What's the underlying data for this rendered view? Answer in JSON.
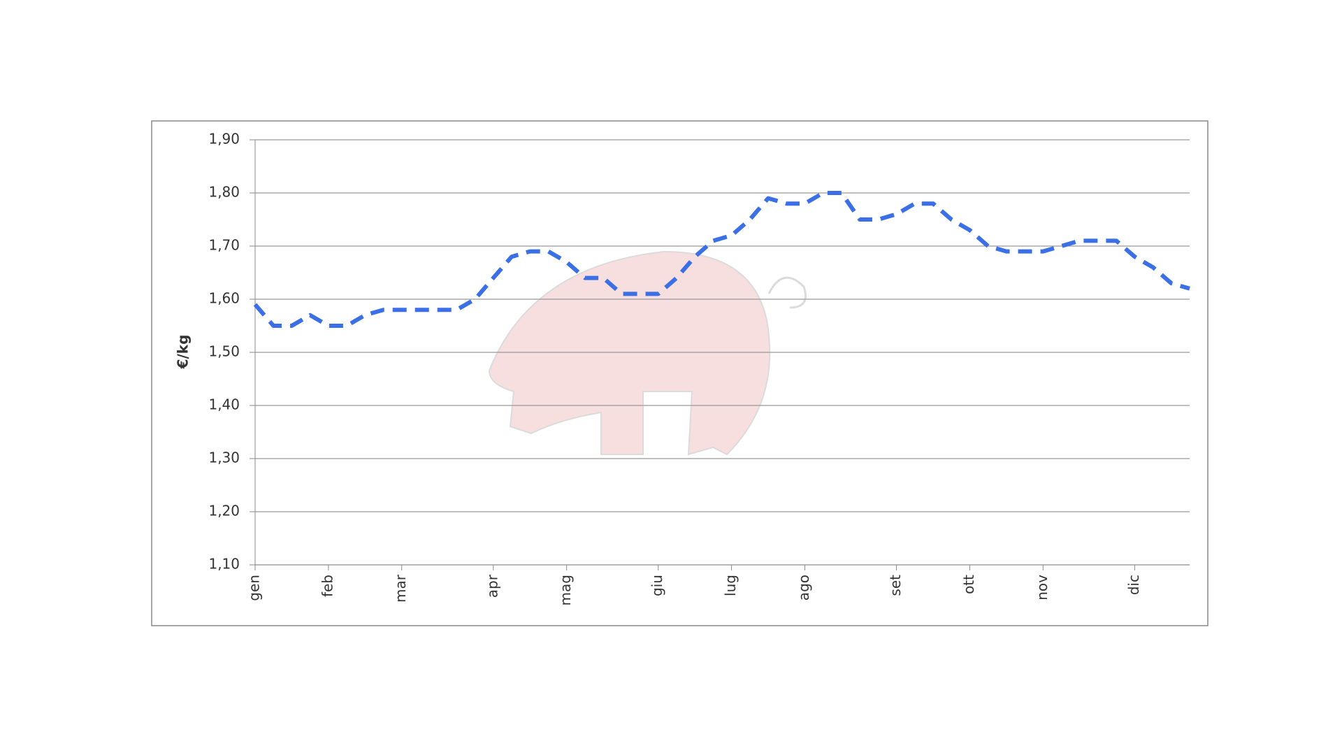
{
  "chart_data": {
    "type": "line",
    "ylabel": "€/kg",
    "categories": [
      "gen",
      null,
      null,
      null,
      "feb",
      null,
      null,
      null,
      "mar",
      null,
      null,
      null,
      null,
      "apr",
      null,
      null,
      null,
      "mag",
      null,
      null,
      null,
      null,
      "giu",
      null,
      null,
      null,
      "lug",
      null,
      null,
      null,
      "ago",
      null,
      null,
      null,
      null,
      "set",
      null,
      null,
      null,
      "ott",
      null,
      null,
      null,
      "nov",
      null,
      null,
      null,
      null,
      "dic",
      null,
      null,
      null
    ],
    "series": [
      {
        "color": "#3a6fe6",
        "values": [
          1.59,
          1.55,
          1.55,
          1.57,
          1.55,
          1.55,
          1.57,
          1.58,
          1.58,
          1.58,
          1.58,
          1.58,
          1.6,
          1.64,
          1.68,
          1.69,
          1.69,
          1.67,
          1.64,
          1.64,
          1.61,
          1.61,
          1.61,
          1.64,
          1.68,
          1.71,
          1.72,
          1.75,
          1.79,
          1.78,
          1.78,
          1.8,
          1.8,
          1.75,
          1.75,
          1.76,
          1.78,
          1.78,
          1.75,
          1.73,
          1.7,
          1.69,
          1.69,
          1.69,
          1.7,
          1.71,
          1.71,
          1.71,
          1.68,
          1.66,
          1.63,
          1.62
        ]
      }
    ],
    "ylim": [
      1.1,
      1.9
    ],
    "yticks": [
      {
        "value": 1.1,
        "label": "1,10"
      },
      {
        "value": 1.2,
        "label": "1,20"
      },
      {
        "value": 1.3,
        "label": "1,30"
      },
      {
        "value": 1.4,
        "label": "1,40"
      },
      {
        "value": 1.5,
        "label": "1,50"
      },
      {
        "value": 1.6,
        "label": "1,60"
      },
      {
        "value": 1.7,
        "label": "1,70"
      },
      {
        "value": 1.8,
        "label": "1,80"
      },
      {
        "value": 1.9,
        "label": "1,90"
      }
    ],
    "grid": true,
    "dashed": true
  }
}
